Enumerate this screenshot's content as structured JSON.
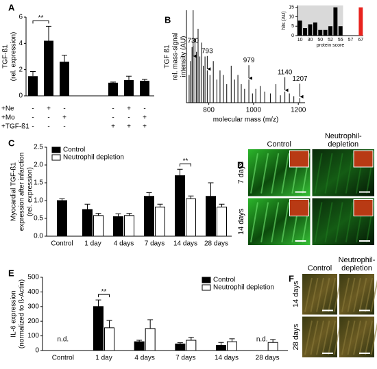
{
  "chart_data": [
    {
      "type": "bar",
      "label": "A",
      "ylabel": [
        "TGF-ß1",
        "(rel. expression)"
      ],
      "values": [
        1.5,
        4.2,
        2.6,
        1.0,
        1.2,
        1.15
      ],
      "errors": [
        0.35,
        1.1,
        0.5,
        0.05,
        0.3,
        0.1
      ],
      "color": "#000000",
      "ylim": [
        0,
        6
      ],
      "yticks": [
        0,
        2,
        4,
        6
      ],
      "conditions": [
        {
          "name": "+Ne",
          "marks": [
            "-",
            "+",
            "-",
            "-",
            "+",
            "-"
          ]
        },
        {
          "name": "+Mo",
          "marks": [
            "-",
            "-",
            "+",
            "-",
            "-",
            "+"
          ]
        },
        {
          "name": "+TGF-ß1",
          "marks": [
            "-",
            "-",
            "-",
            "+",
            "+",
            "+"
          ]
        }
      ],
      "significance": [
        {
          "from": 0,
          "to": 1,
          "label": "**"
        }
      ]
    },
    {
      "type": "spectrum",
      "label": "B",
      "ylabel": [
        "TGF ß1",
        "rel. mass-signal",
        "intensity (AU)"
      ],
      "xlabel": "molecular mass (m/z)",
      "x": [
        712,
        718,
        725,
        730,
        738,
        745,
        752,
        760,
        768,
        775,
        783,
        793,
        805,
        820,
        836,
        850,
        865,
        880,
        900,
        915,
        930,
        945,
        960,
        979,
        995,
        1010,
        1030,
        1050,
        1075,
        1100,
        1120,
        1140,
        1160,
        1180,
        1207
      ],
      "values": [
        0.3,
        0.45,
        0.6,
        1.0,
        0.7,
        0.55,
        0.8,
        0.5,
        0.65,
        0.4,
        0.5,
        0.35,
        0.3,
        0.45,
        0.25,
        0.35,
        0.3,
        0.2,
        0.4,
        0.25,
        0.3,
        0.2,
        0.15,
        0.25,
        0.1,
        0.15,
        0.18,
        0.12,
        0.1,
        0.2,
        0.08,
        0.12,
        0.1,
        0.07,
        0.05
      ],
      "color": "#000000",
      "xlim": [
        700,
        1230
      ],
      "xticks": [
        800,
        1000,
        1200
      ],
      "ylim": [
        0,
        1
      ],
      "annotated_peaks": [
        730,
        793,
        979,
        1140,
        1207
      ],
      "inset": {
        "type": "bar",
        "ylabel": "hits (AU)",
        "xlabel": "protein score",
        "categories": [
          "10",
          null,
          "30",
          null,
          "50",
          null,
          "52",
          null,
          "55",
          null,
          "57",
          null,
          "67"
        ],
        "values": [
          8,
          4,
          6,
          7,
          3,
          3,
          5,
          15,
          5,
          0,
          0,
          0,
          15
        ],
        "colors": [
          "#000000",
          "#000000",
          "#000000",
          "#000000",
          "#000000",
          "#000000",
          "#000000",
          "#000000",
          "#000000",
          "#000000",
          "#000000",
          "#000000",
          "#e8231e"
        ],
        "ylim": [
          0,
          16
        ],
        "yticks": [
          0,
          5,
          10,
          15
        ]
      }
    },
    {
      "type": "grouped_bar",
      "label": "C",
      "ylabel": [
        "Myocardial TGF-ß1",
        "expression after infarction",
        "(rel. expression)"
      ],
      "categories": [
        "Control",
        "1 day",
        "4 days",
        "7 days",
        "14 days",
        "28 days"
      ],
      "series": [
        {
          "name": "Control",
          "color": "#000000",
          "values": [
            1.0,
            0.75,
            0.55,
            1.12,
            1.7,
            1.12
          ],
          "errors": [
            0.05,
            0.15,
            0.08,
            0.1,
            0.18,
            0.38
          ]
        },
        {
          "name": "Neutrophil depletion",
          "color": "#ffffff",
          "values": [
            null,
            0.58,
            0.58,
            0.82,
            1.05,
            0.82
          ],
          "errors": [
            null,
            0.06,
            0.06,
            0.08,
            0.08,
            0.08
          ]
        }
      ],
      "ylim": [
        0,
        2.5
      ],
      "yticks": [
        {
          "value": 0,
          "label": "0.0"
        },
        0.5,
        {
          "value": 1,
          "label": "1.0"
        },
        1.5,
        {
          "value": 2,
          "label": "2.0"
        },
        2.5
      ],
      "legend": "upper left",
      "significance": [
        {
          "category": 4,
          "label": "**"
        }
      ]
    },
    {
      "type": "grouped_bar",
      "label": "E",
      "ylabel": [
        "IL-6 expression",
        "(normalized to ß-Actin)"
      ],
      "categories": [
        "Control",
        "1 day",
        "4 days",
        "7 days",
        "14 days",
        "28 days"
      ],
      "series": [
        {
          "name": "Control",
          "color": "#000000",
          "values": [
            null,
            300,
            60,
            45,
            35,
            null
          ],
          "errors": [
            null,
            45,
            10,
            8,
            20,
            null
          ],
          "value_labels": [
            "n.d.",
            null,
            null,
            null,
            null,
            "n.d."
          ]
        },
        {
          "name": "Neutrophil depletion",
          "color": "#ffffff",
          "values": [
            null,
            155,
            150,
            70,
            60,
            55
          ],
          "errors": [
            null,
            50,
            60,
            20,
            20,
            20
          ]
        }
      ],
      "ylim": [
        0,
        500
      ],
      "yticks": [
        0,
        100,
        200,
        300,
        400,
        500
      ],
      "legend": "upper right",
      "significance": [
        {
          "category": 1,
          "label": "**"
        }
      ]
    }
  ],
  "image_panels": [
    {
      "label": "D",
      "columns": [
        [
          "Control"
        ],
        [
          "Neutrophil-",
          "depletion"
        ]
      ],
      "rows": [
        "7 days",
        "14 days"
      ]
    },
    {
      "label": "F",
      "columns": [
        [
          "Control"
        ],
        [
          "Neutrophil-",
          "depletion"
        ]
      ],
      "rows": [
        "14 days",
        "28 days"
      ]
    }
  ]
}
